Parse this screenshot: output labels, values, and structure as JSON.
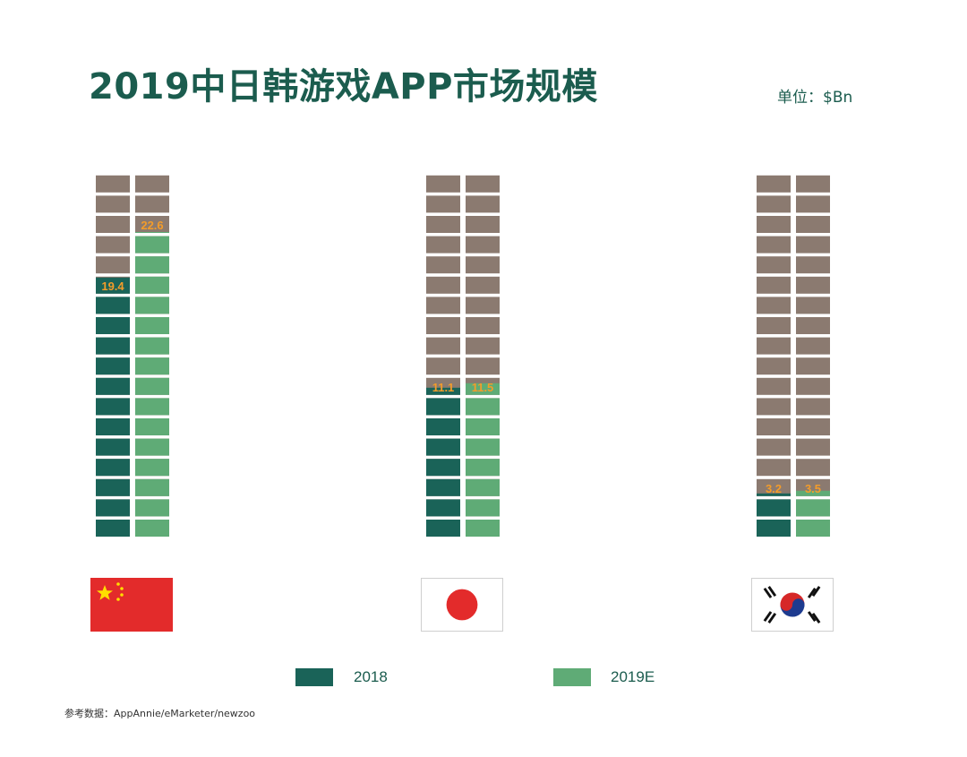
{
  "title": "2019中日韩游戏APP市场规模",
  "unit_label": "单位：$Bn",
  "source_note": "参考数据：AppAnnie/eMarketer/newzoo",
  "colors": {
    "empty_block": "#8b7a70",
    "series_2018": "#1a6358",
    "series_2019E": "#5fab76",
    "value_label": "#f39c2a",
    "text": "#1b5c4e"
  },
  "legend": {
    "label_2018": "2018",
    "label_2019E": "2019E"
  },
  "chart_data": {
    "type": "bar",
    "categories": [
      "China",
      "Japan",
      "South Korea"
    ],
    "series": [
      {
        "name": "2018",
        "values": [
          19.4,
          11.1,
          3.2
        ]
      },
      {
        "name": "2019E",
        "values": [
          22.6,
          11.5,
          3.5
        ]
      }
    ],
    "unit": "$Bn",
    "ylim": [
      0,
      27
    ],
    "legend_position": "bottom",
    "grid": false,
    "value_labels": [
      [
        "19.4",
        "22.6"
      ],
      [
        "11.1",
        "11.5"
      ],
      [
        "3.2",
        "3.5"
      ]
    ]
  },
  "flags": [
    {
      "country": "China",
      "icon": "china-flag-icon"
    },
    {
      "country": "Japan",
      "icon": "japan-flag-icon"
    },
    {
      "country": "South Korea",
      "icon": "korea-flag-icon"
    }
  ]
}
